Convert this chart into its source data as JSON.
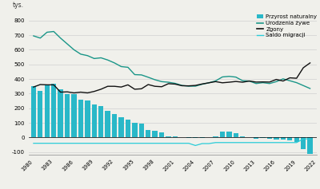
{
  "years": [
    1980,
    1981,
    1982,
    1983,
    1984,
    1985,
    1986,
    1987,
    1988,
    1989,
    1990,
    1991,
    1992,
    1993,
    1994,
    1995,
    1996,
    1997,
    1998,
    1999,
    2000,
    2001,
    2002,
    2003,
    2004,
    2005,
    2006,
    2007,
    2008,
    2009,
    2010,
    2011,
    2012,
    2013,
    2014,
    2015,
    2016,
    2017,
    2018,
    2019,
    2020,
    2021
  ],
  "przyrost_naturalny": [
    352,
    320,
    360,
    365,
    330,
    295,
    295,
    260,
    255,
    225,
    215,
    180,
    160,
    140,
    120,
    100,
    95,
    50,
    45,
    35,
    10,
    5,
    2,
    -2,
    -5,
    -2,
    0,
    5,
    40,
    40,
    30,
    10,
    0,
    -10,
    -5,
    -10,
    -15,
    -15,
    -20,
    -30,
    -80,
    -115
  ],
  "urodzenia_zywe": [
    695,
    680,
    720,
    725,
    680,
    640,
    600,
    570,
    560,
    540,
    545,
    530,
    510,
    485,
    480,
    430,
    428,
    412,
    395,
    382,
    378,
    370,
    356,
    351,
    351,
    364,
    374,
    387,
    414,
    418,
    413,
    388,
    386,
    369,
    375,
    369,
    382,
    401,
    388,
    375,
    355,
    335
  ],
  "zgony": [
    345,
    362,
    360,
    360,
    310,
    312,
    305,
    310,
    305,
    315,
    330,
    350,
    350,
    345,
    360,
    330,
    333,
    362,
    350,
    347,
    368,
    365,
    354,
    353,
    356,
    366,
    374,
    382,
    374,
    378,
    383,
    378,
    386,
    379,
    380,
    379,
    397,
    386,
    408,
    405,
    477,
    510
  ],
  "saldo_migracji": [
    -40,
    -40,
    -40,
    -40,
    -40,
    -40,
    -40,
    -40,
    -40,
    -40,
    -40,
    -40,
    -40,
    -40,
    -40,
    -40,
    -40,
    -40,
    -40,
    -40,
    -40,
    -40,
    -40,
    -40,
    -55,
    -42,
    -42,
    -35,
    -35,
    -35,
    -35,
    -35,
    -35,
    -35,
    -35,
    -35,
    -35,
    -35,
    -35,
    -35,
    -10,
    -10
  ],
  "bar_color": "#29b8c8",
  "line_urodzenia_color": "#1a9688",
  "line_zgony_color": "#111111",
  "line_saldo_color": "#29ccd8",
  "bg_color": "#f0f0eb",
  "grid_color": "#d0d0d0",
  "title_y": "tys.",
  "ylim": [
    -120,
    850
  ],
  "yticks": [
    -100,
    0,
    100,
    200,
    300,
    400,
    500,
    600,
    700,
    800
  ],
  "xtick_years": [
    1980,
    1983,
    1986,
    1989,
    1992,
    1995,
    1998,
    2001,
    2004,
    2007,
    2010,
    2013,
    2016,
    2019,
    2022
  ],
  "legend_labels": [
    "Przyrost naturalny",
    "Urodzenia żywe",
    "Zgony",
    "Saldo migracji"
  ]
}
